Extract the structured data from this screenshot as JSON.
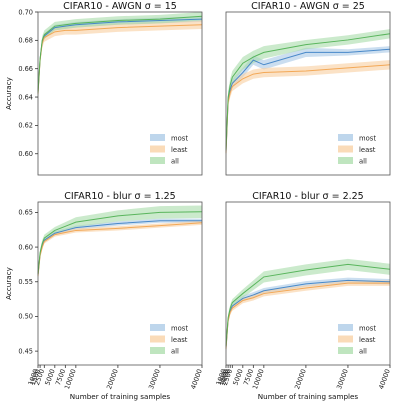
{
  "figure": {
    "shared_xlabel": "Number of training samples",
    "shared_ylabel": "Accuracy"
  },
  "chart_data": [
    {
      "type": "line",
      "title": "CIFAR10 - AWGN σ = 15",
      "xlabel": "",
      "ylabel": "Accuracy",
      "xlim": [
        1000,
        40000
      ],
      "ylim": [
        0.585,
        0.7
      ],
      "xticks": [],
      "yticks": [
        0.6,
        0.62,
        0.64,
        0.66,
        0.68,
        0.7
      ],
      "ytick_labels": [
        "0.60",
        "0.62",
        "0.64",
        "0.66",
        "0.68",
        "0.70"
      ],
      "legend": "bottom-right",
      "grid": false,
      "x": [
        1000,
        1500,
        2000,
        2500,
        5000,
        7500,
        10000,
        20000,
        30000,
        40000
      ],
      "series": [
        {
          "name": "most",
          "color": "#3b7fc4",
          "fill": "#a8c8e6",
          "values": [
            0.644,
            0.667,
            0.679,
            0.683,
            0.689,
            0.69,
            0.691,
            0.693,
            0.694,
            0.695
          ],
          "band": [
            0.004,
            0.003,
            0.003,
            0.002,
            0.002,
            0.002,
            0.002,
            0.002,
            0.002,
            0.002
          ]
        },
        {
          "name": "least",
          "color": "#f2a24a",
          "fill": "#f8cfa0",
          "values": [
            0.642,
            0.666,
            0.678,
            0.682,
            0.686,
            0.687,
            0.687,
            0.689,
            0.69,
            0.691
          ],
          "band": [
            0.004,
            0.003,
            0.003,
            0.003,
            0.003,
            0.003,
            0.003,
            0.003,
            0.003,
            0.003
          ]
        },
        {
          "name": "all",
          "color": "#4caf50",
          "fill": "#a9dcaa",
          "values": [
            0.643,
            0.667,
            0.68,
            0.684,
            0.69,
            0.691,
            0.692,
            0.694,
            0.695,
            0.697
          ],
          "band": [
            0.004,
            0.003,
            0.003,
            0.003,
            0.003,
            0.003,
            0.003,
            0.003,
            0.003,
            0.003
          ]
        }
      ]
    },
    {
      "type": "line",
      "title": "CIFAR10 - AWGN σ = 25",
      "xlabel": "",
      "ylabel": "",
      "xlim": [
        1000,
        40000
      ],
      "ylim": [
        0.59,
        0.695
      ],
      "xticks": [],
      "yticks": [],
      "ytick_labels": [],
      "legend": "bottom-right",
      "grid": false,
      "x": [
        1000,
        1500,
        2000,
        2500,
        5000,
        7500,
        10000,
        20000,
        30000,
        40000
      ],
      "series": [
        {
          "name": "most",
          "color": "#3b7fc4",
          "fill": "#a8c8e6",
          "values": [
            0.605,
            0.638,
            0.645,
            0.649,
            0.656,
            0.664,
            0.661,
            0.669,
            0.669,
            0.671
          ],
          "band": [
            0.004,
            0.003,
            0.003,
            0.003,
            0.003,
            0.003,
            0.003,
            0.003,
            0.002,
            0.002
          ]
        },
        {
          "name": "least",
          "color": "#f2a24a",
          "fill": "#f8cfa0",
          "values": [
            0.604,
            0.637,
            0.643,
            0.647,
            0.652,
            0.655,
            0.656,
            0.657,
            0.659,
            0.661
          ],
          "band": [
            0.004,
            0.003,
            0.003,
            0.003,
            0.003,
            0.003,
            0.003,
            0.003,
            0.003,
            0.003
          ]
        },
        {
          "name": "all",
          "color": "#4caf50",
          "fill": "#a9dcaa",
          "values": [
            0.606,
            0.64,
            0.648,
            0.653,
            0.662,
            0.666,
            0.669,
            0.674,
            0.677,
            0.681
          ],
          "band": [
            0.004,
            0.004,
            0.004,
            0.004,
            0.004,
            0.004,
            0.004,
            0.003,
            0.003,
            0.003
          ]
        }
      ]
    },
    {
      "type": "line",
      "title": "CIFAR10 - blur σ = 1.25",
      "xlabel": "Number of training samples",
      "ylabel": "Accuracy",
      "xlim": [
        1000,
        40000
      ],
      "ylim": [
        0.43,
        0.665
      ],
      "xticks": [
        1000,
        1500,
        2500,
        5000,
        7500,
        10000,
        20000,
        30000,
        40000
      ],
      "xtick_labels": [
        "1000",
        "1500",
        "2500",
        "5000",
        "7500",
        "10000",
        "20000",
        "30000",
        "40000"
      ],
      "yticks": [
        0.45,
        0.5,
        0.55,
        0.6,
        0.65
      ],
      "ytick_labels": [
        "0.45",
        "0.50",
        "0.55",
        "0.60",
        "0.65"
      ],
      "legend": "bottom-right",
      "grid": false,
      "x": [
        1000,
        1500,
        2000,
        2500,
        5000,
        7500,
        10000,
        20000,
        30000,
        40000
      ],
      "series": [
        {
          "name": "most",
          "color": "#3b7fc4",
          "fill": "#a8c8e6",
          "values": [
            0.56,
            0.59,
            0.602,
            0.61,
            0.62,
            0.624,
            0.628,
            0.634,
            0.638,
            0.638
          ],
          "band": [
            0.005,
            0.004,
            0.004,
            0.003,
            0.003,
            0.003,
            0.003,
            0.003,
            0.003,
            0.003
          ]
        },
        {
          "name": "least",
          "color": "#f2a24a",
          "fill": "#f8cfa0",
          "values": [
            0.558,
            0.588,
            0.6,
            0.608,
            0.618,
            0.621,
            0.624,
            0.627,
            0.631,
            0.635
          ],
          "band": [
            0.005,
            0.004,
            0.004,
            0.003,
            0.003,
            0.003,
            0.003,
            0.003,
            0.003,
            0.003
          ]
        },
        {
          "name": "all",
          "color": "#4caf50",
          "fill": "#a9dcaa",
          "values": [
            0.561,
            0.592,
            0.605,
            0.613,
            0.624,
            0.63,
            0.636,
            0.645,
            0.65,
            0.651
          ],
          "band": [
            0.006,
            0.005,
            0.005,
            0.005,
            0.005,
            0.006,
            0.007,
            0.008,
            0.009,
            0.009
          ]
        }
      ]
    },
    {
      "type": "line",
      "title": "CIFAR10 - blur σ = 2.25",
      "xlabel": "Number of training samples",
      "ylabel": "",
      "xlim": [
        1000,
        40000
      ],
      "ylim": [
        0.43,
        0.665
      ],
      "xticks": [
        1000,
        1500,
        2000,
        2500,
        5000,
        7500,
        10000,
        20000,
        30000,
        40000
      ],
      "xtick_labels": [
        "1000",
        "1500",
        "2000",
        "2500",
        "5000",
        "7500",
        "10000",
        "20000",
        "30000",
        "40000"
      ],
      "yticks": [],
      "ytick_labels": [],
      "legend": "bottom-right",
      "grid": false,
      "x": [
        1000,
        1500,
        2000,
        2500,
        5000,
        7500,
        10000,
        20000,
        30000,
        40000
      ],
      "series": [
        {
          "name": "most",
          "color": "#3b7fc4",
          "fill": "#a8c8e6",
          "values": [
            0.455,
            0.495,
            0.508,
            0.515,
            0.526,
            0.531,
            0.537,
            0.547,
            0.552,
            0.55
          ],
          "band": [
            0.006,
            0.005,
            0.004,
            0.004,
            0.004,
            0.004,
            0.004,
            0.004,
            0.004,
            0.004
          ]
        },
        {
          "name": "least",
          "color": "#f2a24a",
          "fill": "#f8cfa0",
          "values": [
            0.453,
            0.494,
            0.506,
            0.512,
            0.523,
            0.527,
            0.533,
            0.541,
            0.548,
            0.548
          ],
          "band": [
            0.006,
            0.005,
            0.004,
            0.004,
            0.004,
            0.004,
            0.004,
            0.004,
            0.004,
            0.004
          ]
        },
        {
          "name": "all",
          "color": "#4caf50",
          "fill": "#a9dcaa",
          "values": [
            0.457,
            0.498,
            0.512,
            0.52,
            0.533,
            0.545,
            0.557,
            0.567,
            0.575,
            0.568
          ],
          "band": [
            0.006,
            0.005,
            0.005,
            0.005,
            0.006,
            0.007,
            0.008,
            0.008,
            0.008,
            0.008
          ]
        }
      ]
    }
  ]
}
